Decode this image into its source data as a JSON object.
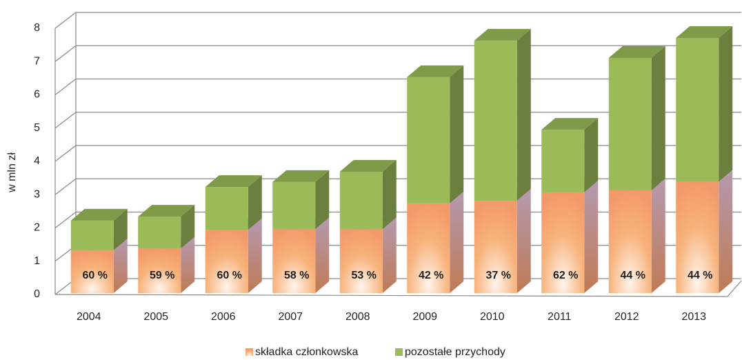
{
  "chart_data": {
    "type": "bar3d_stacked",
    "y_label": "w mln zł",
    "categories": [
      "2004",
      "2005",
      "2006",
      "2007",
      "2008",
      "2009",
      "2010",
      "2011",
      "2012",
      "2013"
    ],
    "series": [
      {
        "name": "składka członkowska",
        "color": "#f7b27a",
        "values": [
          1.33,
          1.38,
          1.94,
          1.96,
          1.96,
          2.74,
          2.82,
          3.07,
          3.13,
          3.39
        ]
      },
      {
        "name": "pozostałe przychody",
        "color": "#9bbb59",
        "values": [
          0.89,
          0.96,
          1.29,
          1.42,
          1.73,
          3.79,
          4.81,
          1.88,
          3.98,
          4.32
        ]
      }
    ],
    "shares": {
      "values": [
        60,
        59,
        60,
        58,
        53,
        42,
        37,
        62,
        44,
        44
      ],
      "value_labels": [
        "60 %",
        "59 %",
        "60 %",
        "58 %",
        "53 %",
        "42 %",
        "37 %",
        "62 %",
        "44 %",
        "44 %"
      ]
    },
    "ylim": [
      0,
      8
    ],
    "yticks": [
      0,
      1,
      2,
      3,
      4,
      5,
      6,
      7,
      8
    ],
    "grid": true,
    "legend": "bottom"
  }
}
